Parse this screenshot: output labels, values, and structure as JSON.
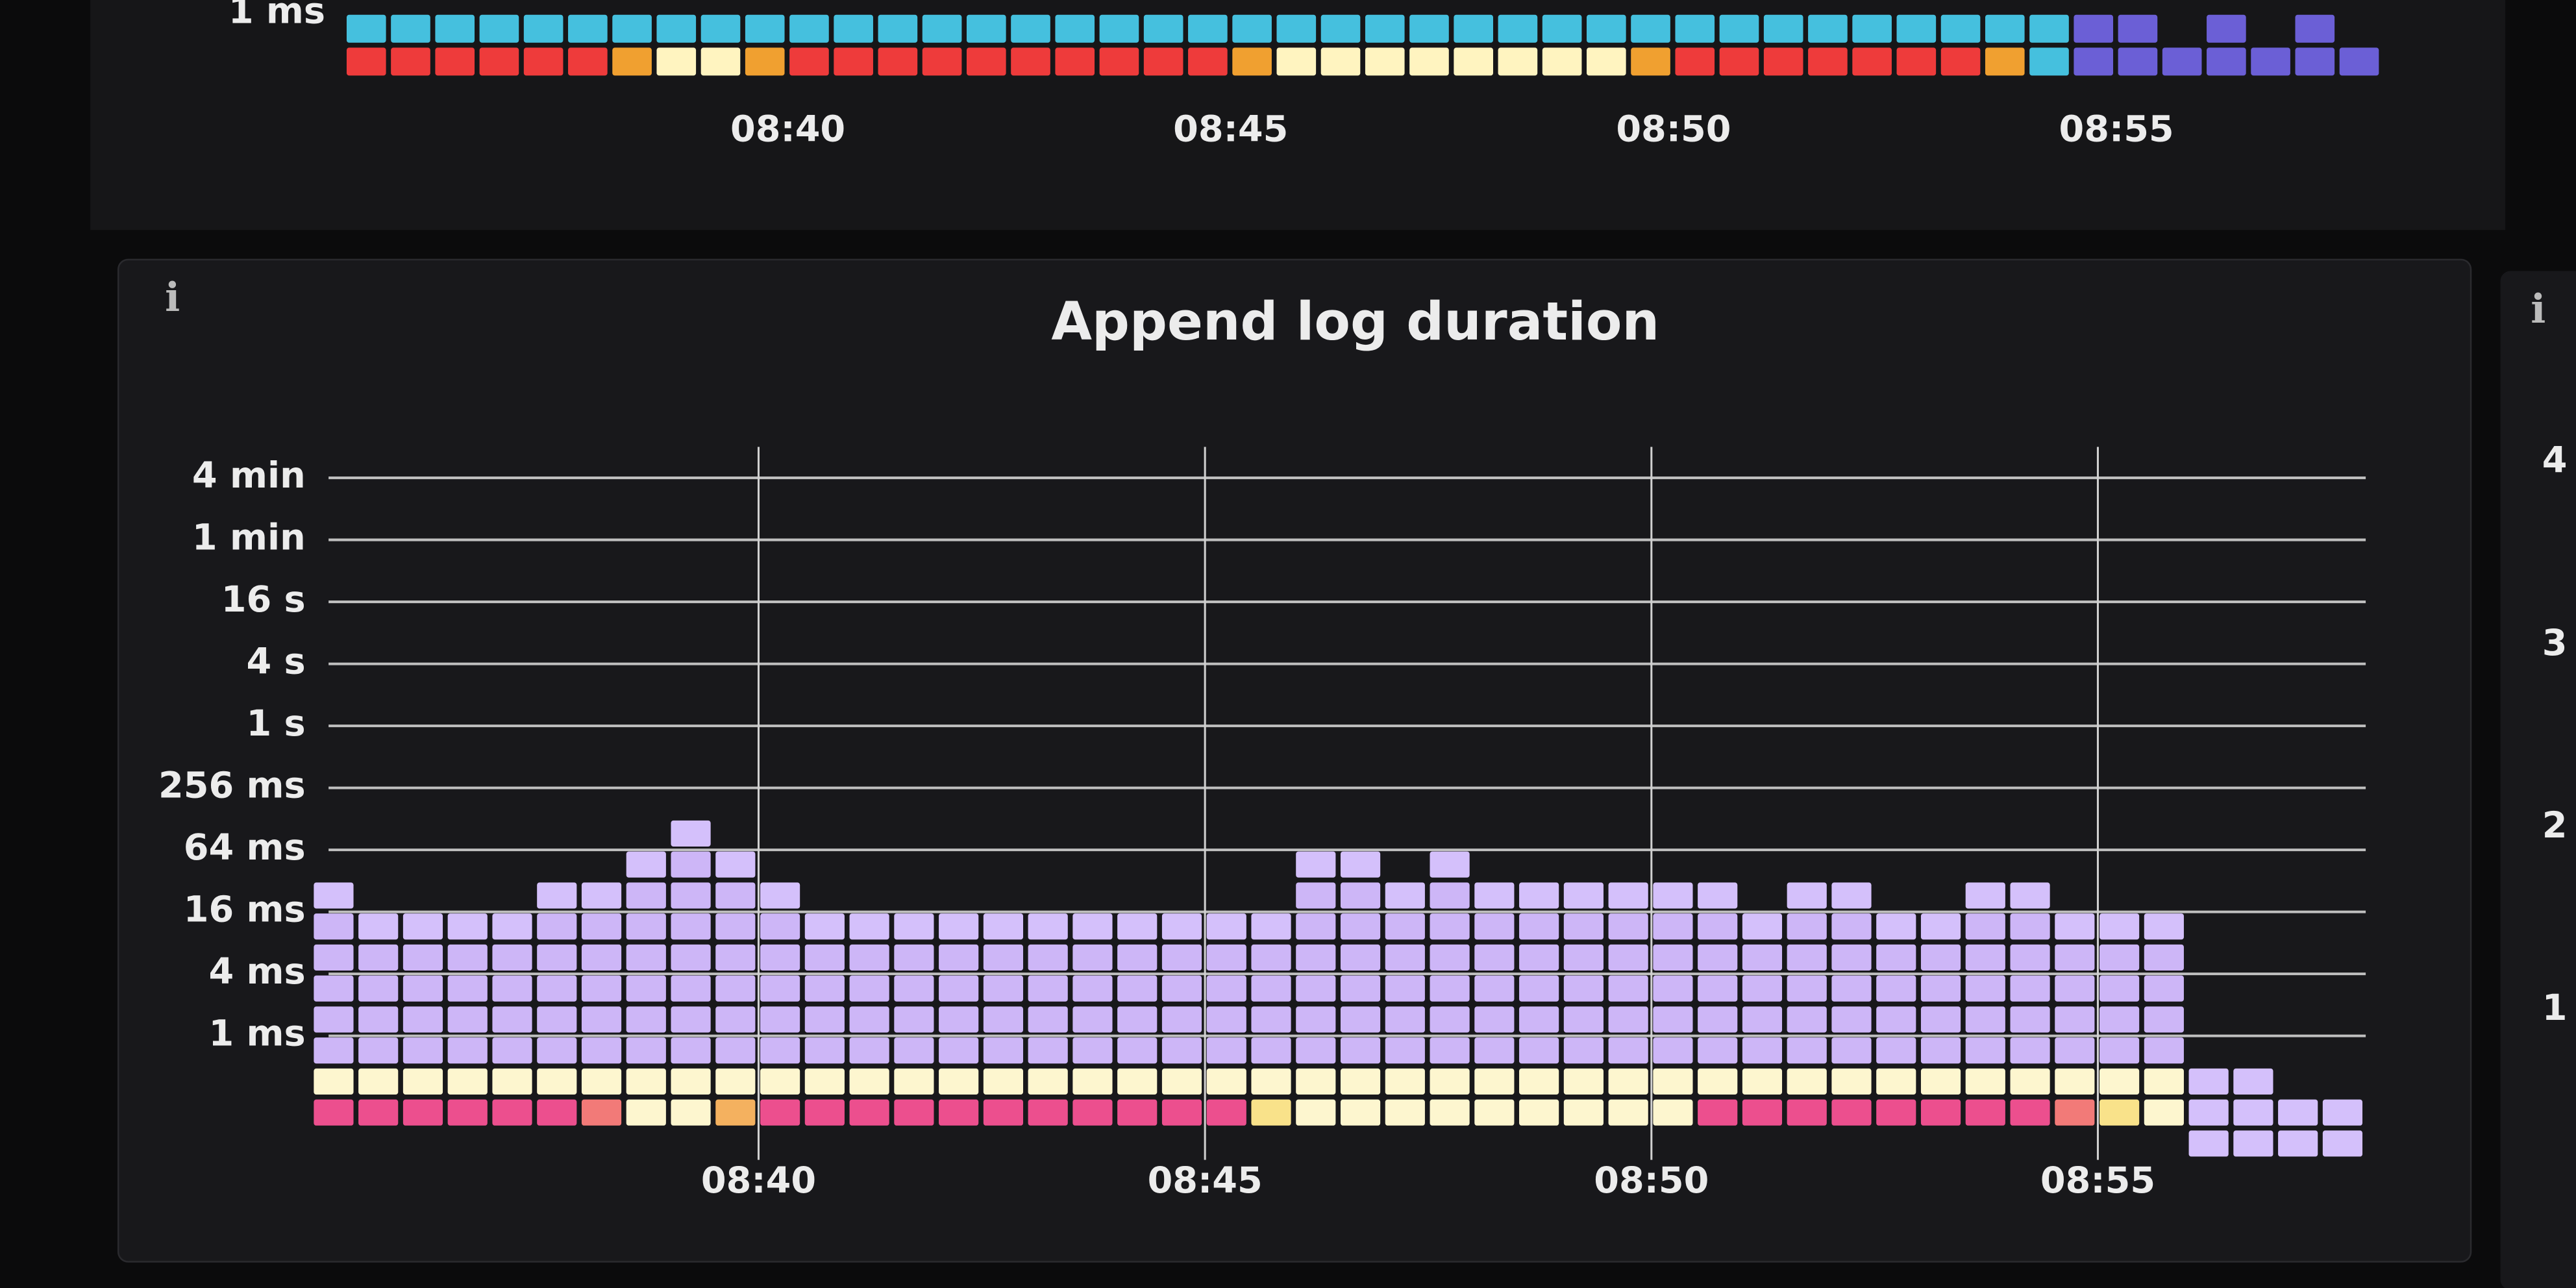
{
  "chart_data": [
    {
      "type": "heatmap",
      "y_scale": "log2",
      "grid": false,
      "ylim": [
        0.25,
        1
      ],
      "yticks": [
        {
          "value": 1,
          "label": "1 ms"
        }
      ],
      "xlim": [
        515,
        538
      ],
      "xticks": [
        {
          "value": 520,
          "label": "08:40"
        },
        {
          "value": 525,
          "label": "08:45"
        },
        {
          "value": 530,
          "label": "08:50"
        },
        {
          "value": 535,
          "label": "08:55"
        }
      ],
      "x": [
        515,
        515.5,
        516,
        516.5,
        517,
        517.5,
        518,
        518.5,
        519,
        519.5,
        520,
        520.5,
        521,
        521.5,
        522,
        522.5,
        523,
        523.5,
        524,
        524.5,
        525,
        525.5,
        526,
        526.5,
        527,
        527.5,
        528,
        528.5,
        529,
        529.5,
        530,
        530.5,
        531,
        531.5,
        532,
        532.5,
        533,
        533.5,
        534,
        534.5,
        535,
        535.5,
        536,
        536.5,
        537,
        537.5
      ],
      "y_buckets": [
        0.25,
        0.5
      ],
      "colors": [
        "#6b5fd6",
        "#45c0de",
        "#fff4c0",
        "#f0a030",
        "#ee3b3b"
      ],
      "zlim": [
        1,
        5
      ],
      "z": [
        [
          5,
          2
        ],
        [
          5,
          2
        ],
        [
          5,
          2
        ],
        [
          5,
          2
        ],
        [
          5,
          2
        ],
        [
          5,
          2
        ],
        [
          4,
          2
        ],
        [
          3,
          2
        ],
        [
          3,
          2
        ],
        [
          4,
          2
        ],
        [
          5,
          2
        ],
        [
          5,
          2
        ],
        [
          5,
          2
        ],
        [
          5,
          2
        ],
        [
          5,
          2
        ],
        [
          5,
          2
        ],
        [
          5,
          2
        ],
        [
          5,
          2
        ],
        [
          5,
          2
        ],
        [
          5,
          2
        ],
        [
          4,
          2
        ],
        [
          3,
          2
        ],
        [
          3,
          2
        ],
        [
          3,
          2
        ],
        [
          3,
          2
        ],
        [
          3,
          2
        ],
        [
          3,
          2
        ],
        [
          3,
          2
        ],
        [
          3,
          2
        ],
        [
          4,
          2
        ],
        [
          5,
          2
        ],
        [
          5,
          2
        ],
        [
          5,
          2
        ],
        [
          5,
          2
        ],
        [
          5,
          2
        ],
        [
          5,
          2
        ],
        [
          5,
          2
        ],
        [
          4,
          2
        ],
        [
          2,
          2
        ],
        [
          1,
          1
        ],
        [
          1,
          1
        ],
        [
          1,
          0
        ],
        [
          1,
          1
        ],
        [
          1,
          0
        ],
        [
          1,
          1
        ],
        [
          1,
          0
        ]
      ]
    },
    {
      "type": "heatmap",
      "y_scale": "log2",
      "grid": true,
      "title": "Append log duration",
      "info": "i",
      "ylim": [
        0.0625,
        524288
      ],
      "yticks": [
        {
          "value": 1,
          "label": "1 ms"
        },
        {
          "value": 4,
          "label": "4 ms"
        },
        {
          "value": 16,
          "label": "16 ms"
        },
        {
          "value": 64,
          "label": "64 ms"
        },
        {
          "value": 256,
          "label": "256 ms"
        },
        {
          "value": 1024,
          "label": "1 s"
        },
        {
          "value": 4096,
          "label": "4 s"
        },
        {
          "value": 16384,
          "label": "16 s"
        },
        {
          "value": 65536,
          "label": "1 min"
        },
        {
          "value": 262144,
          "label": "4 min"
        }
      ],
      "xlim": [
        515,
        538
      ],
      "xticks": [
        {
          "value": 520,
          "label": "08:40"
        },
        {
          "value": 525,
          "label": "08:45"
        },
        {
          "value": 530,
          "label": "08:50"
        },
        {
          "value": 535,
          "label": "08:55"
        }
      ],
      "x": [
        515,
        515.5,
        516,
        516.5,
        517,
        517.5,
        518,
        518.5,
        519,
        519.5,
        520,
        520.5,
        521,
        521.5,
        522,
        522.5,
        523,
        523.5,
        524,
        524.5,
        525,
        525.5,
        526,
        526.5,
        527,
        527.5,
        528,
        528.5,
        529,
        529.5,
        530,
        530.5,
        531,
        531.5,
        532,
        532.5,
        533,
        533.5,
        534,
        534.5,
        535,
        535.5,
        536,
        536.5,
        537,
        537.5
      ],
      "y_buckets": [
        0.0625,
        0.125,
        0.25,
        0.5,
        1,
        2,
        4,
        8,
        16,
        32,
        64
      ],
      "colors": [
        "#d4c0fb",
        "#cdb6f7",
        "#d8ccf4",
        "#e8e2ea",
        "#fdf6cf",
        "#f9e28a",
        "#f4b15f",
        "#f27a78",
        "#ec4f8e"
      ],
      "zlim": [
        1,
        9
      ],
      "z": [
        [
          0,
          9,
          5,
          2,
          2,
          2,
          2,
          2,
          1,
          0,
          0
        ],
        [
          0,
          9,
          5,
          2,
          2,
          2,
          2,
          1,
          0,
          0,
          0
        ],
        [
          0,
          9,
          5,
          2,
          2,
          2,
          2,
          1,
          0,
          0,
          0
        ],
        [
          0,
          9,
          5,
          2,
          2,
          2,
          2,
          1,
          0,
          0,
          0
        ],
        [
          0,
          9,
          5,
          2,
          2,
          2,
          2,
          1,
          0,
          0,
          0
        ],
        [
          0,
          9,
          5,
          2,
          2,
          2,
          2,
          2,
          1,
          0,
          0
        ],
        [
          0,
          8,
          5,
          2,
          2,
          2,
          2,
          2,
          1,
          0,
          0
        ],
        [
          0,
          5,
          5,
          2,
          2,
          2,
          2,
          2,
          2,
          1,
          0
        ],
        [
          0,
          5,
          5,
          2,
          2,
          2,
          2,
          2,
          2,
          2,
          1
        ],
        [
          0,
          7,
          5,
          2,
          2,
          2,
          2,
          2,
          2,
          1,
          0
        ],
        [
          0,
          9,
          5,
          2,
          2,
          2,
          2,
          2,
          1,
          0,
          0
        ],
        [
          0,
          9,
          5,
          2,
          2,
          2,
          2,
          1,
          0,
          0,
          0
        ],
        [
          0,
          9,
          5,
          2,
          2,
          2,
          2,
          1,
          0,
          0,
          0
        ],
        [
          0,
          9,
          5,
          2,
          2,
          2,
          2,
          1,
          0,
          0,
          0
        ],
        [
          0,
          9,
          5,
          2,
          2,
          2,
          2,
          1,
          0,
          0,
          0
        ],
        [
          0,
          9,
          5,
          2,
          2,
          2,
          2,
          1,
          0,
          0,
          0
        ],
        [
          0,
          9,
          5,
          2,
          2,
          2,
          2,
          1,
          0,
          0,
          0
        ],
        [
          0,
          9,
          5,
          2,
          2,
          2,
          2,
          1,
          0,
          0,
          0
        ],
        [
          0,
          9,
          5,
          2,
          2,
          2,
          2,
          1,
          0,
          0,
          0
        ],
        [
          0,
          9,
          5,
          2,
          2,
          2,
          2,
          1,
          0,
          0,
          0
        ],
        [
          0,
          9,
          5,
          2,
          2,
          2,
          2,
          1,
          0,
          0,
          0
        ],
        [
          0,
          6,
          5,
          2,
          2,
          2,
          2,
          1,
          0,
          0,
          0
        ],
        [
          0,
          5,
          5,
          2,
          2,
          2,
          2,
          2,
          2,
          1,
          0
        ],
        [
          0,
          5,
          5,
          2,
          2,
          2,
          2,
          2,
          2,
          1,
          0
        ],
        [
          0,
          5,
          5,
          2,
          2,
          2,
          2,
          2,
          1,
          0,
          0
        ],
        [
          0,
          5,
          5,
          2,
          2,
          2,
          2,
          2,
          2,
          1,
          0
        ],
        [
          0,
          5,
          5,
          2,
          2,
          2,
          2,
          2,
          1,
          0,
          0
        ],
        [
          0,
          5,
          5,
          2,
          2,
          2,
          2,
          2,
          1,
          0,
          0
        ],
        [
          0,
          5,
          5,
          2,
          2,
          2,
          2,
          2,
          1,
          0,
          0
        ],
        [
          0,
          5,
          5,
          2,
          2,
          2,
          2,
          2,
          1,
          0,
          0
        ],
        [
          0,
          5,
          5,
          2,
          2,
          2,
          2,
          2,
          1,
          0,
          0
        ],
        [
          0,
          9,
          5,
          2,
          2,
          2,
          2,
          2,
          1,
          0,
          0
        ],
        [
          0,
          9,
          5,
          2,
          2,
          2,
          2,
          1,
          0,
          0,
          0
        ],
        [
          0,
          9,
          5,
          2,
          2,
          2,
          2,
          2,
          1,
          0,
          0
        ],
        [
          0,
          9,
          5,
          2,
          2,
          2,
          2,
          2,
          1,
          0,
          0
        ],
        [
          0,
          9,
          5,
          2,
          2,
          2,
          2,
          1,
          0,
          0,
          0
        ],
        [
          0,
          9,
          5,
          2,
          2,
          2,
          2,
          1,
          0,
          0,
          0
        ],
        [
          0,
          9,
          5,
          2,
          2,
          2,
          2,
          2,
          1,
          0,
          0
        ],
        [
          0,
          9,
          5,
          2,
          2,
          2,
          2,
          2,
          1,
          0,
          0
        ],
        [
          0,
          8,
          5,
          2,
          2,
          2,
          2,
          1,
          0,
          0,
          0
        ],
        [
          0,
          6,
          5,
          2,
          2,
          2,
          2,
          1,
          0,
          0,
          0
        ],
        [
          0,
          5,
          5,
          2,
          2,
          2,
          2,
          1,
          0,
          0,
          0
        ],
        [
          1,
          1,
          1,
          0,
          0,
          0,
          0,
          0,
          0,
          0,
          0
        ],
        [
          1,
          1,
          1,
          0,
          0,
          0,
          0,
          0,
          0,
          0,
          0
        ],
        [
          1,
          1,
          0,
          0,
          0,
          0,
          0,
          0,
          0,
          0,
          0
        ],
        [
          1,
          1,
          0,
          0,
          0,
          0,
          0,
          0,
          0,
          0,
          0
        ]
      ]
    },
    {
      "type": "heatmap",
      "info": "i",
      "ylim": [
        0,
        4.5
      ],
      "yticks": [
        1,
        2,
        3,
        4
      ]
    }
  ]
}
